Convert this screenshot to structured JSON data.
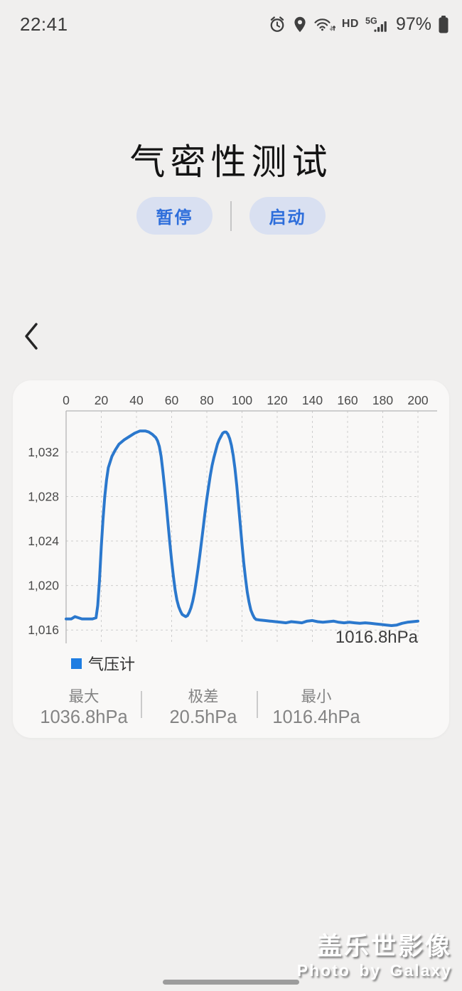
{
  "status_bar": {
    "time": "22:41",
    "hd_label": "HD",
    "network_label": "5G",
    "battery_percent": "97%",
    "icons": [
      "alarm-icon",
      "location-icon",
      "wifi-icon",
      "hd-badge",
      "signal-5g-icon",
      "battery-icon"
    ]
  },
  "header": {
    "title": "气密性测试"
  },
  "controls": {
    "pause_label": "暂停",
    "start_label": "启动"
  },
  "navigation": {
    "back_icon": "chevron-left"
  },
  "chart_card": {
    "legend_label": "气压计",
    "stats": [
      {
        "label": "最大",
        "value": "1036.8hPa"
      },
      {
        "label": "极差",
        "value": "20.5hPa"
      },
      {
        "label": "最小",
        "value": "1016.4hPa"
      }
    ]
  },
  "chart_data": {
    "type": "line",
    "title": "",
    "xlabel": "",
    "ylabel": "",
    "unit": "hPa",
    "xlim": [
      0,
      200
    ],
    "ylim": [
      1014.8,
      1035.7
    ],
    "grid": true,
    "legend_position": "bottom-left",
    "x_ticks": [
      {
        "value": 0,
        "label": "0"
      },
      {
        "value": 20,
        "label": "20"
      },
      {
        "value": 40,
        "label": "40"
      },
      {
        "value": 60,
        "label": "60"
      },
      {
        "value": 80,
        "label": "80"
      },
      {
        "value": 100,
        "label": "100"
      },
      {
        "value": 120,
        "label": "120"
      },
      {
        "value": 140,
        "label": "140"
      },
      {
        "value": 160,
        "label": "160"
      },
      {
        "value": 180,
        "label": "180"
      },
      {
        "value": 200,
        "label": "200"
      }
    ],
    "y_ticks": [
      {
        "value": 1016,
        "label": "1,016"
      },
      {
        "value": 1020,
        "label": "1,020"
      },
      {
        "value": 1024,
        "label": "1,024"
      },
      {
        "value": 1028,
        "label": "1,028"
      },
      {
        "value": 1032,
        "label": "1,032"
      }
    ],
    "last_value_label": "1016.8hPa",
    "max": 1036.8,
    "range": 20.5,
    "min": 1016.4,
    "series": [
      {
        "name": "气压计",
        "color": "#2b78cd",
        "points": [
          [
            0,
            1017.0
          ],
          [
            3,
            1017.0
          ],
          [
            5,
            1017.2
          ],
          [
            7,
            1017.1
          ],
          [
            9,
            1017.0
          ],
          [
            12,
            1017.0
          ],
          [
            15,
            1017.0
          ],
          [
            17,
            1017.1
          ],
          [
            18,
            1018.2
          ],
          [
            19,
            1020.5
          ],
          [
            20,
            1023.5
          ],
          [
            21,
            1026.0
          ],
          [
            22,
            1028.0
          ],
          [
            23,
            1029.5
          ],
          [
            24,
            1030.6
          ],
          [
            26,
            1031.6
          ],
          [
            28,
            1032.2
          ],
          [
            30,
            1032.7
          ],
          [
            33,
            1033.1
          ],
          [
            36,
            1033.4
          ],
          [
            39,
            1033.7
          ],
          [
            42,
            1033.9
          ],
          [
            45,
            1033.9
          ],
          [
            47,
            1033.8
          ],
          [
            49,
            1033.6
          ],
          [
            51,
            1033.3
          ],
          [
            52,
            1033.0
          ],
          [
            53,
            1032.5
          ],
          [
            54,
            1031.6
          ],
          [
            55,
            1030.3
          ],
          [
            56,
            1028.8
          ],
          [
            57,
            1027.2
          ],
          [
            58,
            1025.5
          ],
          [
            59,
            1023.8
          ],
          [
            60,
            1022.2
          ],
          [
            61,
            1020.8
          ],
          [
            62,
            1019.6
          ],
          [
            63,
            1018.7
          ],
          [
            64,
            1018.1
          ],
          [
            65,
            1017.7
          ],
          [
            66,
            1017.4
          ],
          [
            67,
            1017.3
          ],
          [
            68,
            1017.2
          ],
          [
            69,
            1017.3
          ],
          [
            70,
            1017.6
          ],
          [
            71,
            1018.0
          ],
          [
            72,
            1018.6
          ],
          [
            73,
            1019.4
          ],
          [
            74,
            1020.4
          ],
          [
            75,
            1021.5
          ],
          [
            76,
            1022.7
          ],
          [
            77,
            1024.0
          ],
          [
            78,
            1025.3
          ],
          [
            79,
            1026.6
          ],
          [
            80,
            1027.8
          ],
          [
            81,
            1028.9
          ],
          [
            82,
            1029.9
          ],
          [
            83,
            1030.8
          ],
          [
            84,
            1031.5
          ],
          [
            85,
            1032.1
          ],
          [
            86,
            1032.7
          ],
          [
            87,
            1033.1
          ],
          [
            88,
            1033.4
          ],
          [
            89,
            1033.7
          ],
          [
            90,
            1033.8
          ],
          [
            91,
            1033.8
          ],
          [
            92,
            1033.6
          ],
          [
            93,
            1033.2
          ],
          [
            94,
            1032.6
          ],
          [
            95,
            1031.7
          ],
          [
            96,
            1030.5
          ],
          [
            97,
            1029.0
          ],
          [
            98,
            1027.3
          ],
          [
            99,
            1025.5
          ],
          [
            100,
            1023.7
          ],
          [
            101,
            1022.0
          ],
          [
            102,
            1020.6
          ],
          [
            103,
            1019.4
          ],
          [
            104,
            1018.5
          ],
          [
            105,
            1017.8
          ],
          [
            106,
            1017.4
          ],
          [
            107,
            1017.1
          ],
          [
            108,
            1016.95
          ],
          [
            110,
            1016.9
          ],
          [
            113,
            1016.85
          ],
          [
            116,
            1016.8
          ],
          [
            119,
            1016.75
          ],
          [
            122,
            1016.7
          ],
          [
            125,
            1016.65
          ],
          [
            128,
            1016.75
          ],
          [
            131,
            1016.7
          ],
          [
            134,
            1016.65
          ],
          [
            137,
            1016.8
          ],
          [
            140,
            1016.85
          ],
          [
            143,
            1016.75
          ],
          [
            146,
            1016.7
          ],
          [
            149,
            1016.75
          ],
          [
            152,
            1016.8
          ],
          [
            155,
            1016.7
          ],
          [
            158,
            1016.65
          ],
          [
            161,
            1016.7
          ],
          [
            164,
            1016.65
          ],
          [
            167,
            1016.6
          ],
          [
            170,
            1016.65
          ],
          [
            173,
            1016.6
          ],
          [
            176,
            1016.55
          ],
          [
            179,
            1016.5
          ],
          [
            182,
            1016.45
          ],
          [
            185,
            1016.4
          ],
          [
            188,
            1016.45
          ],
          [
            191,
            1016.6
          ],
          [
            194,
            1016.7
          ],
          [
            197,
            1016.75
          ],
          [
            200,
            1016.8
          ]
        ]
      }
    ]
  },
  "watermark": {
    "line1": "盖乐世影像",
    "line2": "Photo by Galaxy"
  },
  "colors": {
    "page_background": "#f0efee",
    "card_background": "#f9f8f7",
    "line_blue": "#2b78cd",
    "legend_blue": "#1e7de2",
    "button_background": "#d9e0f1",
    "button_text": "#2e6edb",
    "status_icon": "#3f3f3f"
  }
}
